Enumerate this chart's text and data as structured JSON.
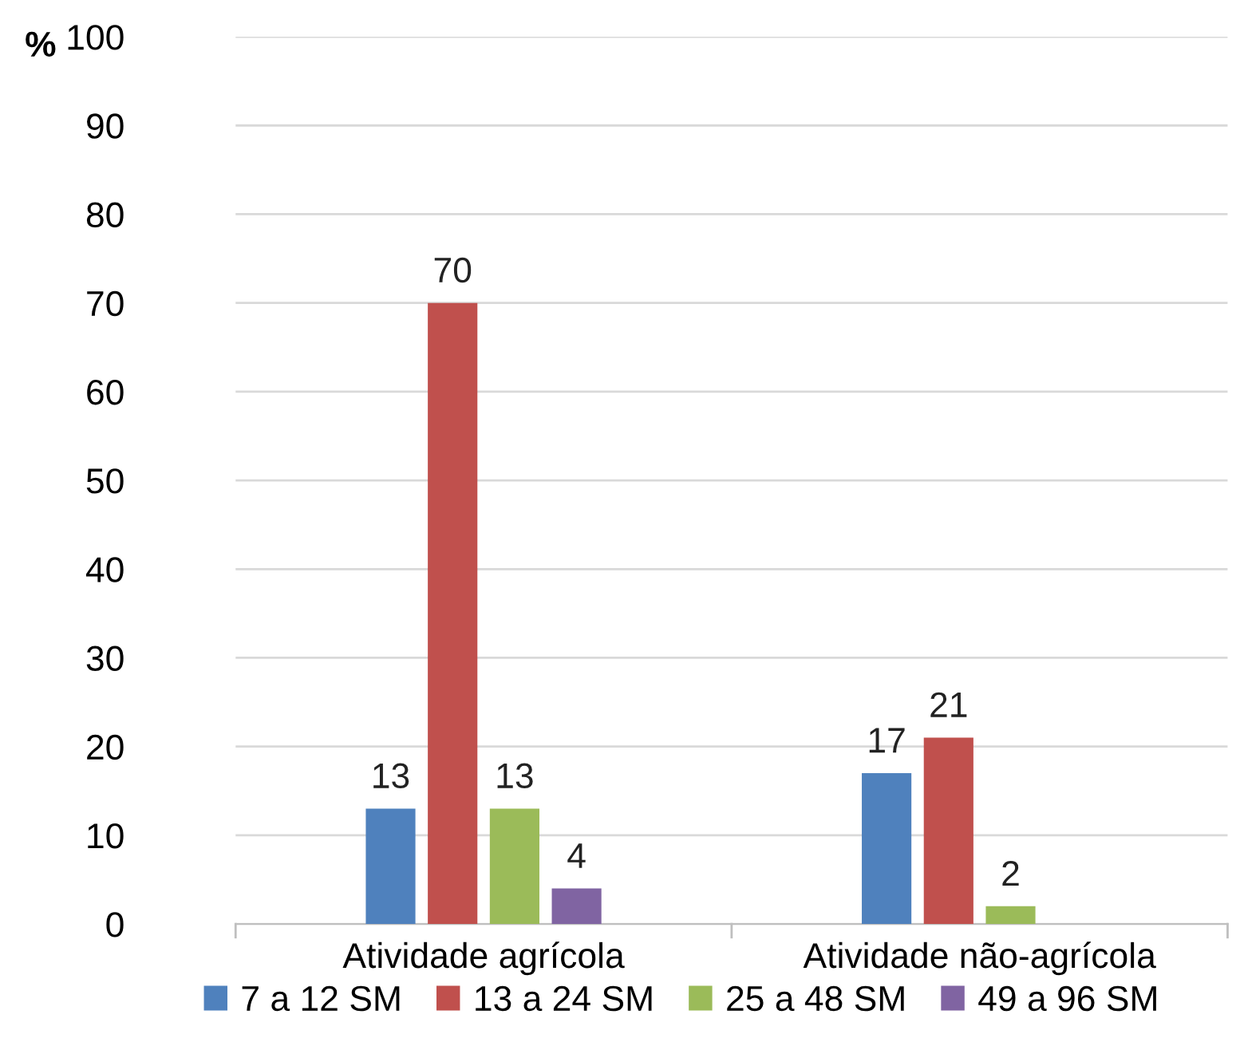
{
  "chart_data": {
    "type": "bar",
    "ylabel": "%",
    "categories": [
      "Atividade agrícola",
      "Atividade não-agrícola"
    ],
    "series": [
      {
        "name": "7 a 12 SM",
        "color": "#4f81bd",
        "values": [
          13,
          17
        ]
      },
      {
        "name": "13 a 24 SM",
        "color": "#c0504d",
        "values": [
          70,
          21
        ]
      },
      {
        "name": "25 a 48 SM",
        "color": "#9bbb59",
        "values": [
          13,
          2
        ]
      },
      {
        "name": "49 a 96 SM",
        "color": "#8064a2",
        "values": [
          4,
          null
        ]
      }
    ],
    "ylim": [
      0,
      100
    ],
    "yticks": [
      0,
      10,
      20,
      30,
      40,
      50,
      60,
      70,
      80,
      90,
      100
    ],
    "grid": "y",
    "legend": "bottom",
    "data_labels": true
  }
}
